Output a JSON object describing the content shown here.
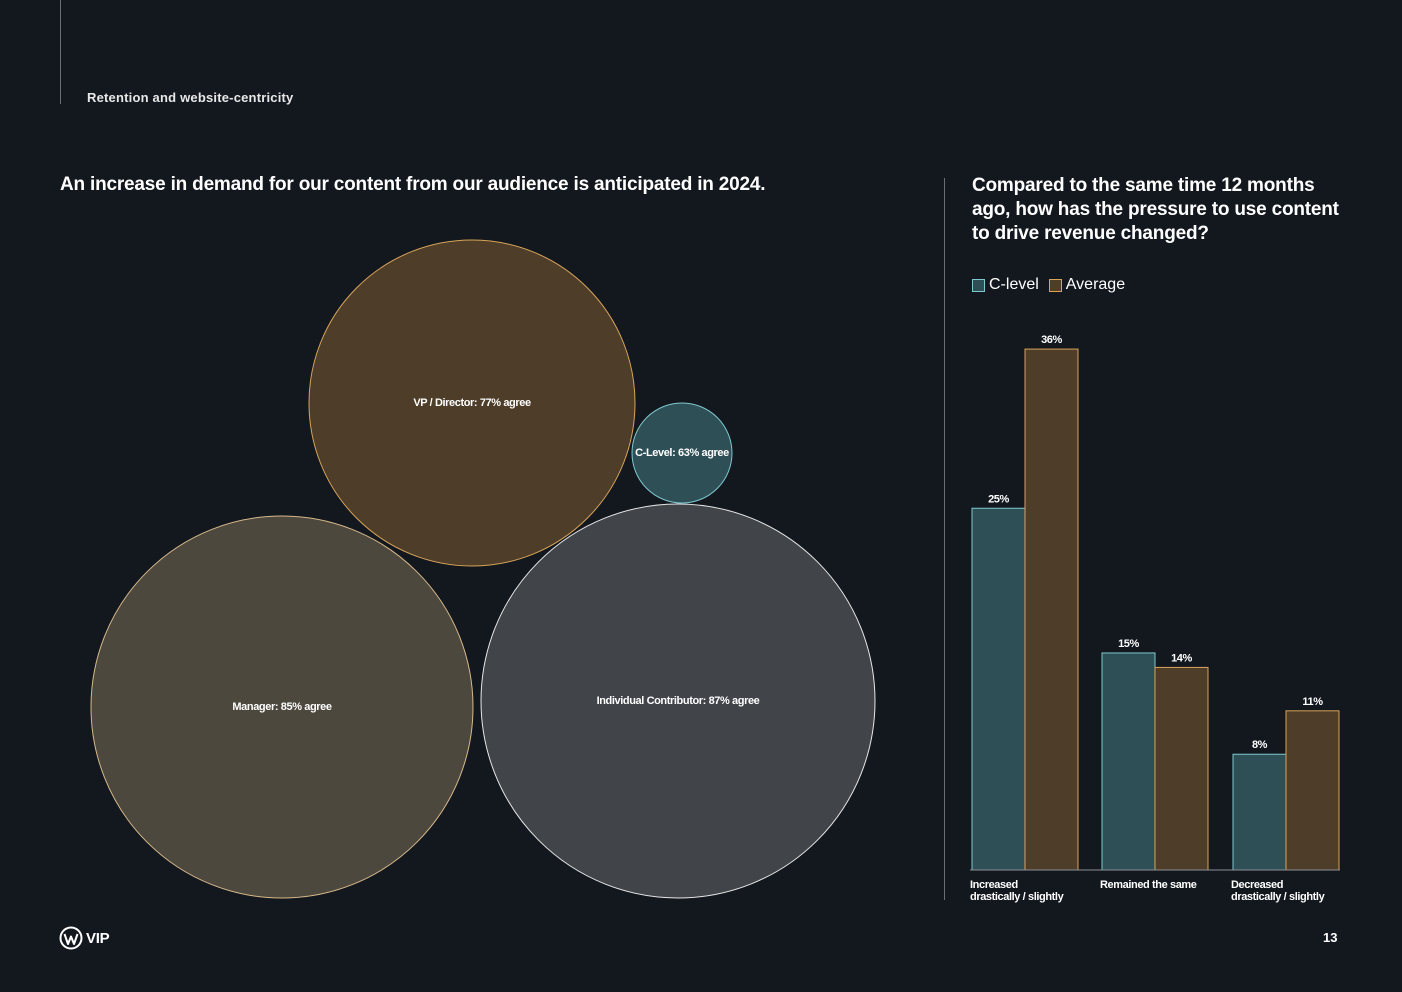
{
  "header": {
    "section": "Retention and website-centricity"
  },
  "left_chart": {
    "title": "An increase in demand for our content from our audience is anticipated in 2024."
  },
  "right_chart": {
    "title": "Compared to the same time 12 months ago, how has the pressure to use content to drive revenue changed?"
  },
  "chart_data": [
    {
      "type": "bubble",
      "title": "An increase in demand for our content from our audience is anticipated in 2024.",
      "bubbles": [
        {
          "label": "VP / Director: 77% agree",
          "group": "VP / Director",
          "value": 77,
          "fill": "#4d3d29",
          "stroke": "#d8a45a"
        },
        {
          "label": "C-Level: 63% agree",
          "group": "C-Level",
          "value": 63,
          "fill": "#2f4f56",
          "stroke": "#7fc8cf"
        },
        {
          "label": "Manager: 85% agree",
          "group": "Manager",
          "value": 85,
          "fill": "#4d483e",
          "stroke": "#d6b88a"
        },
        {
          "label": "Individual Contributor: 87% agree",
          "group": "Individual Contributor",
          "value": 87,
          "fill": "#41454a",
          "stroke": "#e6e6e6"
        }
      ]
    },
    {
      "type": "bar",
      "title": "Compared to the same time 12 months ago, how has the pressure to use content to drive revenue changed?",
      "categories": [
        [
          "Increased",
          "drastically / slightly"
        ],
        [
          "Remained the same"
        ],
        [
          "Decreased",
          "drastically / slightly"
        ]
      ],
      "series": [
        {
          "name": "C-level",
          "values": [
            25,
            15,
            8
          ],
          "labels": [
            "25%",
            "15%",
            "8%"
          ],
          "fill": "#2f4f56",
          "stroke": "#7fc8cf"
        },
        {
          "name": "Average",
          "values": [
            36,
            14,
            11
          ],
          "labels": [
            "36%",
            "14%",
            "11%"
          ],
          "fill": "#4d3d29",
          "stroke": "#d8a45a"
        }
      ],
      "legend_position": "top-left",
      "grid": false
    }
  ],
  "footer": {
    "logo_text": "VIP",
    "page_number": "13"
  }
}
